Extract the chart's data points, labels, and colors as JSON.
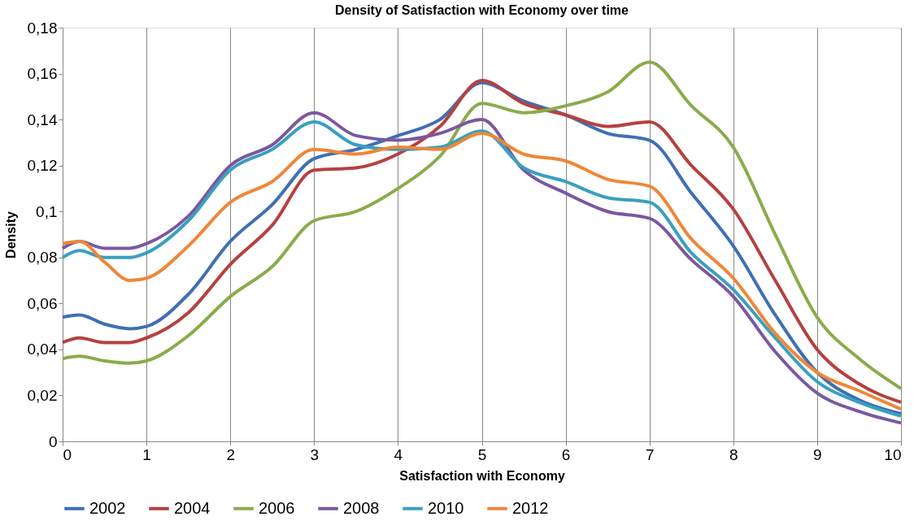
{
  "chart_data": {
    "type": "line",
    "title": "Density of Satisfaction with Economy over time",
    "xlabel": "Satisfaction with Economy",
    "ylabel": "Density",
    "x": [
      0,
      0.2,
      0.5,
      0.8,
      1,
      1.5,
      2,
      2.5,
      3,
      3.5,
      4,
      4.5,
      5,
      5.5,
      6,
      6.5,
      7,
      7.5,
      8,
      8.5,
      9,
      9.5,
      10
    ],
    "series": [
      {
        "name": "2002",
        "color": "#3f6fb4",
        "values": [
          0.054,
          0.055,
          0.051,
          0.049,
          0.05,
          0.064,
          0.087,
          0.103,
          0.123,
          0.127,
          0.133,
          0.14,
          0.156,
          0.148,
          0.142,
          0.134,
          0.131,
          0.108,
          0.085,
          0.055,
          0.03,
          0.018,
          0.012
        ]
      },
      {
        "name": "2004",
        "color": "#b5413f",
        "values": [
          0.043,
          0.045,
          0.043,
          0.043,
          0.045,
          0.056,
          0.077,
          0.094,
          0.118,
          0.119,
          0.125,
          0.137,
          0.157,
          0.147,
          0.142,
          0.137,
          0.139,
          0.12,
          0.101,
          0.07,
          0.04,
          0.025,
          0.017
        ]
      },
      {
        "name": "2006",
        "color": "#8aac4b",
        "values": [
          0.036,
          0.037,
          0.035,
          0.034,
          0.035,
          0.046,
          0.063,
          0.076,
          0.096,
          0.1,
          0.11,
          0.124,
          0.147,
          0.143,
          0.146,
          0.152,
          0.165,
          0.146,
          0.128,
          0.09,
          0.054,
          0.036,
          0.023
        ]
      },
      {
        "name": "2008",
        "color": "#7a58a0",
        "values": [
          0.084,
          0.087,
          0.084,
          0.084,
          0.086,
          0.098,
          0.12,
          0.129,
          0.143,
          0.133,
          0.131,
          0.134,
          0.14,
          0.118,
          0.108,
          0.1,
          0.097,
          0.079,
          0.063,
          0.039,
          0.021,
          0.013,
          0.008
        ]
      },
      {
        "name": "2010",
        "color": "#3a9fbf",
        "values": [
          0.08,
          0.083,
          0.08,
          0.08,
          0.082,
          0.096,
          0.118,
          0.127,
          0.139,
          0.129,
          0.127,
          0.128,
          0.135,
          0.119,
          0.113,
          0.106,
          0.104,
          0.082,
          0.066,
          0.045,
          0.026,
          0.017,
          0.011
        ]
      },
      {
        "name": "2012",
        "color": "#ee8739",
        "values": [
          0.086,
          0.087,
          0.078,
          0.07,
          0.071,
          0.085,
          0.104,
          0.113,
          0.127,
          0.125,
          0.128,
          0.127,
          0.134,
          0.125,
          0.122,
          0.114,
          0.111,
          0.088,
          0.071,
          0.047,
          0.03,
          0.022,
          0.014
        ]
      }
    ],
    "xlim": [
      0,
      10
    ],
    "xticks": [
      0,
      1,
      2,
      3,
      4,
      5,
      6,
      7,
      8,
      9,
      10
    ],
    "ylim": [
      0,
      0.18
    ],
    "yticks": [
      0,
      {
        "value": 0.02,
        "label": "0,02"
      },
      {
        "value": 0.04,
        "label": "0,04"
      },
      {
        "value": 0.06,
        "label": "0,06"
      },
      {
        "value": 0.08,
        "label": "0,08"
      },
      {
        "value": 0.1,
        "label": "0,1"
      },
      {
        "value": 0.12,
        "label": "0,12"
      },
      {
        "value": 0.14,
        "label": "0,14"
      },
      {
        "value": 0.16,
        "label": "0,16"
      },
      {
        "value": 0.18,
        "label": "0,18"
      }
    ],
    "grid": "x",
    "legend": "bottom",
    "marker": "none",
    "line_style": "solid"
  }
}
